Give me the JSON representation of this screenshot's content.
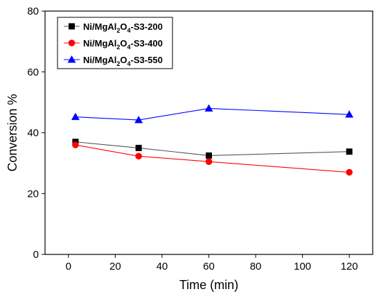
{
  "chart_data": {
    "type": "line",
    "title": "",
    "xlabel": "Time (min)",
    "ylabel": "Conversion %",
    "xlim": [
      -10,
      130
    ],
    "ylim": [
      0,
      80
    ],
    "xticks": [
      0,
      20,
      40,
      60,
      80,
      100,
      120
    ],
    "yticks": [
      0,
      20,
      40,
      60,
      80
    ],
    "legend_position": "top-left",
    "grid": false,
    "series": [
      {
        "name": "Ni/MgAl2O4-S3-200",
        "label_parts": {
          "a": "Ni/MgAl",
          "s1": "2",
          "b": "O",
          "s2": "4",
          "c": "-S3-200"
        },
        "color": "#000000",
        "line_color": "#555555",
        "marker": "square",
        "x": [
          3,
          30,
          60,
          120
        ],
        "y": [
          37.0,
          35.0,
          32.5,
          33.8
        ]
      },
      {
        "name": "Ni/MgAl2O4-S3-400",
        "label_parts": {
          "a": "Ni/MgAl",
          "s1": "2",
          "b": "O",
          "s2": "4",
          "c": "-S3-400"
        },
        "color": "#ff0000",
        "line_color": "#ff0000",
        "marker": "circle",
        "x": [
          3,
          30,
          60,
          120
        ],
        "y": [
          36.0,
          32.3,
          30.5,
          27.0
        ]
      },
      {
        "name": "Ni/MgAl2O4-S3-550",
        "label_parts": {
          "a": "Ni/MgAl",
          "s1": "2",
          "b": "O",
          "s2": "4",
          "c": "-S3-550"
        },
        "color": "#0000ff",
        "line_color": "#0000ff",
        "marker": "triangle",
        "x": [
          3,
          30,
          60,
          120
        ],
        "y": [
          45.2,
          44.2,
          48.0,
          46.0
        ]
      }
    ]
  }
}
